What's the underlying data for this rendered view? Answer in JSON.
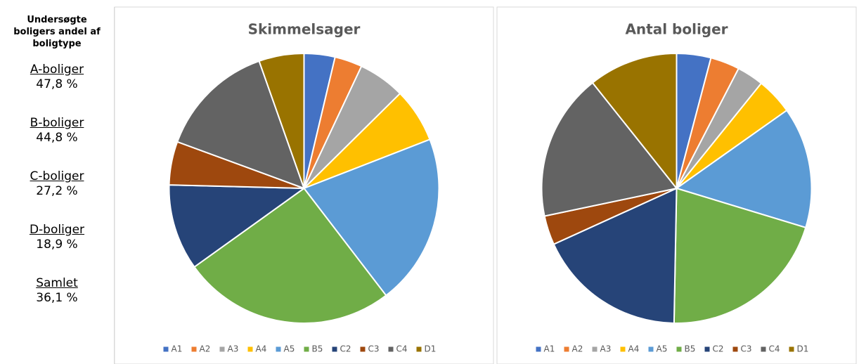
{
  "sidebar": {
    "title": "Undersøgte boligers andel af boligtype",
    "items": [
      {
        "label": "A-boliger",
        "value": "47,8 %"
      },
      {
        "label": "B-boliger",
        "value": "44,8 %"
      },
      {
        "label": "C-boliger",
        "value": "27,2 %"
      },
      {
        "label": "D-boliger",
        "value": "18,9 %"
      },
      {
        "label": "Samlet",
        "value": "36,1 %"
      }
    ]
  },
  "chart_data": [
    {
      "type": "pie",
      "title": "Skimmelsager",
      "categories": [
        "A1",
        "A2",
        "A3",
        "A4",
        "A5",
        "B5",
        "C2",
        "C3",
        "C4",
        "D1"
      ],
      "values": [
        3.7,
        3.3,
        5.6,
        6.5,
        20.5,
        25.5,
        10.3,
        5.2,
        14.0,
        5.4
      ],
      "colors": [
        "#4472c4",
        "#ed7d31",
        "#a5a5a5",
        "#ffc000",
        "#5b9bd5",
        "#70ad47",
        "#264478",
        "#9e480e",
        "#636363",
        "#997300"
      ],
      "legend": "bottom"
    },
    {
      "type": "pie",
      "title": "Antal boliger",
      "categories": [
        "A1",
        "A2",
        "A3",
        "A4",
        "A5",
        "B5",
        "C2",
        "C3",
        "C4",
        "D1"
      ],
      "values": [
        4.1,
        3.5,
        3.2,
        4.4,
        14.5,
        20.6,
        17.9,
        3.5,
        17.6,
        10.7
      ],
      "colors": [
        "#4472c4",
        "#ed7d31",
        "#a5a5a5",
        "#ffc000",
        "#5b9bd5",
        "#70ad47",
        "#264478",
        "#9e480e",
        "#636363",
        "#997300"
      ],
      "legend": "bottom"
    }
  ]
}
